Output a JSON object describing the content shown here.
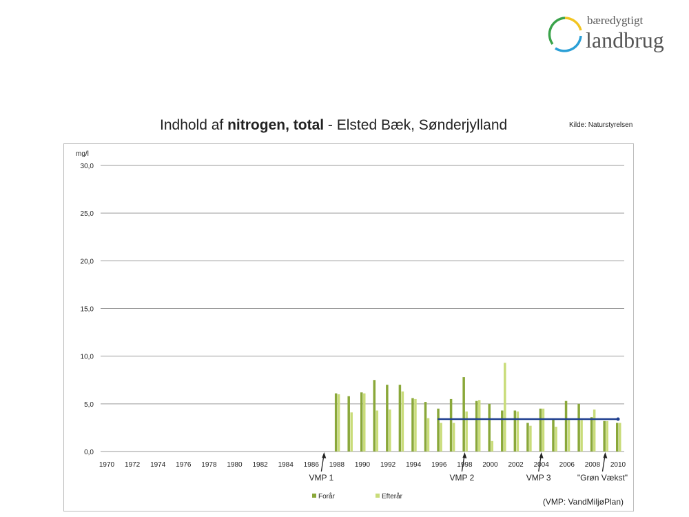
{
  "logo": {
    "line1": "bæredygtigt",
    "line2": "landbrug"
  },
  "header": {
    "title_prefix": "Indhold af ",
    "title_bold": "nitrogen, total",
    "title_suffix": " - Elsted Bæk, Sønderjylland",
    "source": "Kilde: Naturstyrelsen"
  },
  "colors": {
    "forar": "#8aa83a",
    "efterar": "#c9dc7a",
    "trend": "#1f3f8f",
    "grid": "#9a9a9a"
  },
  "chart_data": {
    "type": "bar",
    "title": "Indhold af nitrogen, total - Elsted Bæk, Sønderjylland",
    "ylabel": "mg/l",
    "ylim": [
      0,
      30
    ],
    "yticks": [
      "0,0",
      "5,0",
      "10,0",
      "15,0",
      "20,0",
      "25,0",
      "30,0"
    ],
    "xlim": [
      1970,
      2010
    ],
    "xticks": [
      "1970",
      "1972",
      "1974",
      "1976",
      "1978",
      "1980",
      "1982",
      "1984",
      "1986",
      "1988",
      "1990",
      "1992",
      "1994",
      "1996",
      "1998",
      "2000",
      "2002",
      "2004",
      "2006",
      "2008",
      "2010"
    ],
    "years": [
      1988,
      1989,
      1990,
      1991,
      1992,
      1993,
      1994,
      1995,
      1996,
      1997,
      1998,
      1999,
      2000,
      2001,
      2002,
      2003,
      2004,
      2005,
      2006,
      2007,
      2008,
      2009,
      2010
    ],
    "series": [
      {
        "name": "Forår",
        "values": [
          6.1,
          5.8,
          6.2,
          7.5,
          7.0,
          7.0,
          5.6,
          5.2,
          4.5,
          5.5,
          7.8,
          5.3,
          5.0,
          4.3,
          4.3,
          3.0,
          4.5,
          3.4,
          5.3,
          5.0,
          3.6,
          3.2,
          3.0
        ]
      },
      {
        "name": "Efterår",
        "values": [
          6.0,
          4.1,
          6.1,
          4.3,
          4.4,
          6.3,
          5.5,
          3.5,
          3.0,
          3.0,
          4.2,
          5.4,
          1.1,
          9.3,
          4.2,
          2.7,
          4.5,
          2.6,
          3.4,
          3.3,
          4.4,
          3.2,
          3.0
        ]
      }
    ],
    "trend": {
      "from": 1996,
      "to": 2010,
      "value": 3.4
    },
    "annotations": [
      {
        "text": "VMP 1",
        "year": 1987
      },
      {
        "text": "VMP 2",
        "year": 1998
      },
      {
        "text": "VMP 3",
        "year": 2004
      },
      {
        "text": "\"Grøn Vækst\"",
        "year": 2009
      }
    ],
    "legend": [
      "Forår",
      "Efterår"
    ],
    "legend_position": "bottom",
    "footnote": "(VMP: VandMiljøPlan)",
    "grid": true
  }
}
